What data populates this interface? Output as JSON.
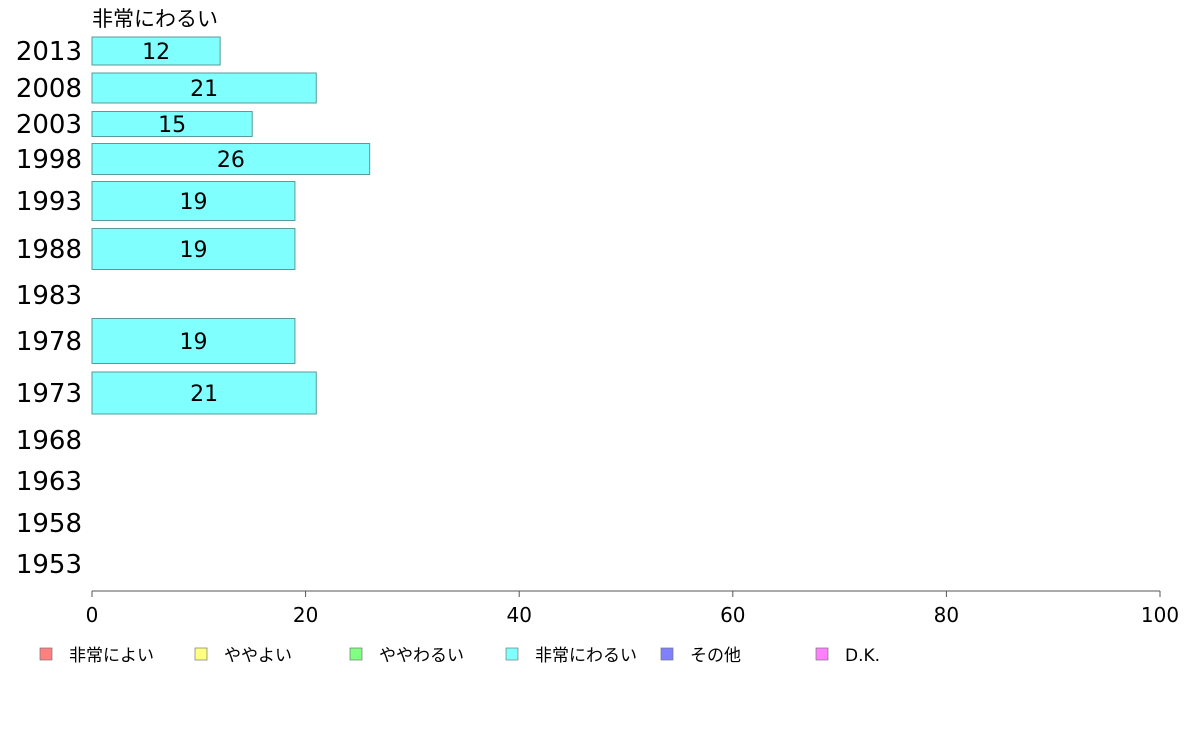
{
  "chart_data": {
    "type": "bar",
    "orientation": "horizontal",
    "title": "非常にわるい",
    "categories": [
      "2013",
      "2008",
      "2003",
      "1998",
      "1993",
      "1988",
      "1983",
      "1978",
      "1973",
      "1968",
      "1963",
      "1958",
      "1953"
    ],
    "series": [
      {
        "name": "非常にわるい",
        "color": "#80ffff",
        "values": [
          12,
          21,
          15,
          26,
          19,
          19,
          null,
          19,
          21,
          null,
          null,
          null,
          null
        ]
      }
    ],
    "xlim": [
      0,
      100
    ],
    "xticks": [
      0,
      20,
      40,
      60,
      80,
      100
    ],
    "legend": {
      "placement": "bottom",
      "items": [
        {
          "label": "非常によい",
          "color": "#ff8080"
        },
        {
          "label": "ややよい",
          "color": "#ffff80"
        },
        {
          "label": "ややわるい",
          "color": "#80ff80"
        },
        {
          "label": "非常にわるい",
          "color": "#80ffff"
        },
        {
          "label": "その他",
          "color": "#8080ff"
        },
        {
          "label": "D.K.",
          "color": "#ff80ff"
        }
      ]
    },
    "grid": false
  }
}
